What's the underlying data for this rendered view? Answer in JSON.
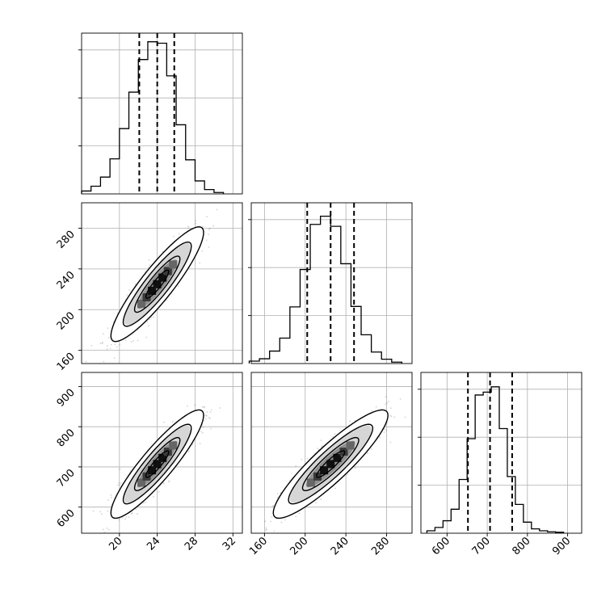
{
  "chart_data": {
    "type": "corner",
    "variables": [
      {
        "range": [
          16,
          33
        ],
        "ticks": [
          20,
          24,
          28,
          32
        ],
        "quantiles": [
          22.1,
          24.0,
          25.8
        ],
        "hist_bins": [
          16.5,
          17.5,
          18.5,
          19.5,
          20.5,
          21.5,
          22.5,
          23.5,
          24.5,
          25.5,
          26.5,
          27.5,
          28.5,
          29.5,
          30.5
        ],
        "hist_counts": [
          0.6,
          1.6,
          3.5,
          7.3,
          13.6,
          21.2,
          28.0,
          31.7,
          31.4,
          24.6,
          14.4,
          7.1,
          2.7,
          0.9,
          0.3
        ],
        "hist_ticks": [
          10,
          20,
          30
        ]
      },
      {
        "range": [
          147,
          305
        ],
        "ticks": [
          160,
          200,
          240,
          280
        ],
        "quantiles": [
          202,
          225,
          248
        ],
        "hist_bins": [
          150,
          160,
          170,
          180,
          190,
          200,
          210,
          220,
          230,
          240,
          250,
          260,
          270,
          280,
          290
        ],
        "hist_counts": [
          0.5,
          1.0,
          2.6,
          5.3,
          11.8,
          19.6,
          29.0,
          30.7,
          28.6,
          20.8,
          11.9,
          6.0,
          2.4,
          0.9,
          0.3
        ],
        "hist_ticks": [
          10,
          20,
          30
        ]
      },
      {
        "range": [
          535,
          935
        ],
        "ticks": [
          600,
          700,
          800,
          900
        ],
        "quantiles": [
          652,
          707,
          762
        ],
        "hist_bins": [
          560,
          580,
          600,
          620,
          640,
          660,
          680,
          700,
          720,
          740,
          760,
          780,
          800,
          820,
          840,
          860,
          880
        ],
        "hist_counts": [
          0.5,
          1.2,
          2.6,
          5.0,
          11.2,
          19.7,
          28.8,
          29.4,
          30.5,
          21.8,
          11.8,
          6.0,
          2.3,
          0.9,
          0.5,
          0.3,
          0.2
        ],
        "hist_ticks": [
          10,
          20,
          30
        ]
      }
    ],
    "pairs": [
      {
        "x": 0,
        "y": 1,
        "mean": [
          24.0,
          225
        ],
        "sd": [
          2.0,
          23.0
        ],
        "rho": 0.9
      },
      {
        "x": 0,
        "y": 2,
        "mean": [
          24.0,
          707
        ],
        "sd": [
          2.0,
          55.0
        ],
        "rho": 0.9
      },
      {
        "x": 1,
        "y": 2,
        "mean": [
          225,
          707
        ],
        "sd": [
          23.0,
          55.0
        ],
        "rho": 0.9
      }
    ],
    "grid": true
  }
}
